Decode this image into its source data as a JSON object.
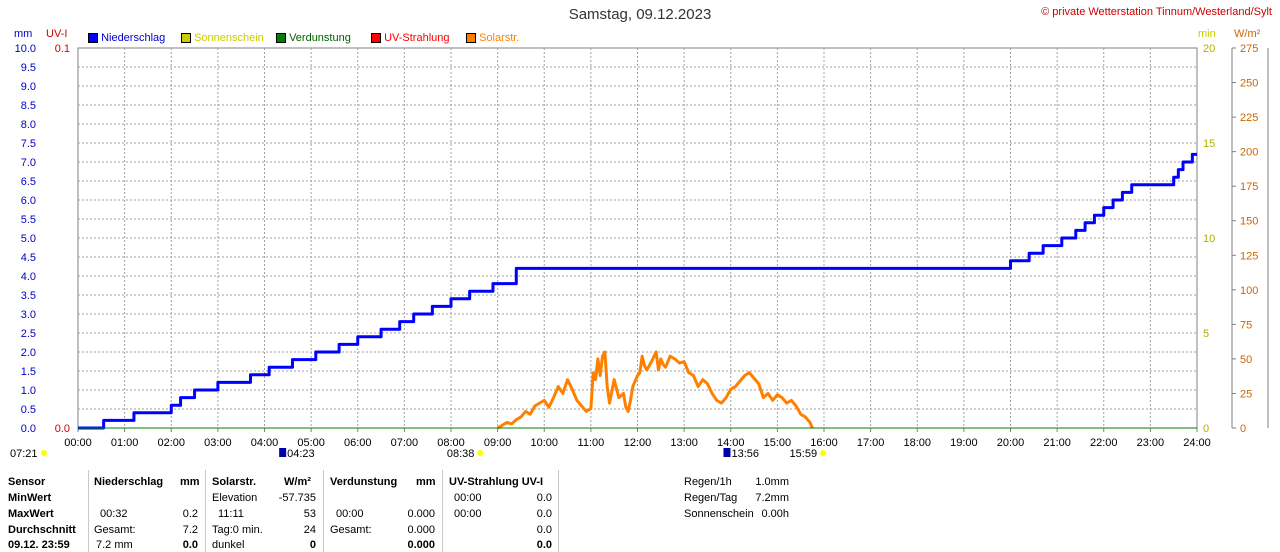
{
  "header": {
    "title": "Samstag, 09.12.2023",
    "credit": "© private Wetterstation Tinnum/Westerland/Sylt"
  },
  "units": {
    "mm": "mm",
    "uvi": "UV-I",
    "min": "min",
    "wm2": "W/m²"
  },
  "legend": [
    {
      "label": "Niederschlag",
      "color": "#0000ff",
      "text_color": "#0000cc"
    },
    {
      "label": "Sonnenschein",
      "color": "#cccc00",
      "text_color": "#cccc00"
    },
    {
      "label": "Verdunstung",
      "color": "#008000",
      "text_color": "#006000"
    },
    {
      "label": "UV-Strahlung",
      "color": "#ff0000",
      "text_color": "#ff0000"
    },
    {
      "label": "Solarstr.",
      "color": "#ff8000",
      "text_color": "#ff8000"
    }
  ],
  "chart_data": {
    "type": "line",
    "title": "Samstag, 09.12.2023",
    "x_ticks": [
      "00:00",
      "01:00",
      "02:00",
      "03:00",
      "04:00",
      "05:00",
      "06:00",
      "07:00",
      "08:00",
      "09:00",
      "10:00",
      "11:00",
      "12:00",
      "13:00",
      "14:00",
      "15:00",
      "16:00",
      "17:00",
      "18:00",
      "19:00",
      "20:00",
      "21:00",
      "22:00",
      "23:00",
      "24:00"
    ],
    "y_left_mm": {
      "ticks": [
        "0.0",
        "0.5",
        "1.0",
        "1.5",
        "2.0",
        "2.5",
        "3.0",
        "3.5",
        "4.0",
        "4.5",
        "5.0",
        "5.5",
        "6.0",
        "6.5",
        "7.0",
        "7.5",
        "8.0",
        "8.5",
        "9.0",
        "9.5",
        "10.0"
      ],
      "range": [
        0,
        10
      ]
    },
    "y_left_uvi": {
      "ticks": [
        "0.1",
        "0.0"
      ],
      "range": [
        0,
        0.1
      ]
    },
    "y_right_min": {
      "ticks": [
        "20",
        "15",
        "10",
        "5",
        "0"
      ],
      "range": [
        0,
        20
      ]
    },
    "y_right_wm2": {
      "ticks": [
        "275",
        "250",
        "225",
        "200",
        "175",
        "150",
        "125",
        "100",
        "75",
        "50",
        "25",
        "0"
      ],
      "range": [
        0,
        275
      ]
    },
    "grid": true,
    "series": [
      {
        "name": "Niederschlag",
        "axis": "mm",
        "color": "#0000ff",
        "step": true,
        "x": [
          0.0,
          0.55,
          1.2,
          2.0,
          2.2,
          2.5,
          3.0,
          3.7,
          4.1,
          4.6,
          5.1,
          5.6,
          6.0,
          6.5,
          6.9,
          7.2,
          7.6,
          8.0,
          8.4,
          8.9,
          9.4,
          20.0,
          20.4,
          20.7,
          21.1,
          21.4,
          21.6,
          21.8,
          22.0,
          22.2,
          22.4,
          22.6,
          22.9,
          23.5,
          23.6,
          23.7,
          23.8,
          23.9,
          24.0
        ],
        "y": [
          0.0,
          0.2,
          0.4,
          0.6,
          0.8,
          1.0,
          1.2,
          1.4,
          1.6,
          1.8,
          2.0,
          2.2,
          2.4,
          2.6,
          2.8,
          3.0,
          3.2,
          3.4,
          3.6,
          3.8,
          4.2,
          4.4,
          4.6,
          4.8,
          5.0,
          5.2,
          5.4,
          5.6,
          5.8,
          6.0,
          6.2,
          6.4,
          6.4,
          6.6,
          6.8,
          7.0,
          7.0,
          7.2,
          7.2
        ]
      },
      {
        "name": "Solarstr.",
        "axis": "wm2",
        "color": "#ff8000",
        "x": [
          9.0,
          9.1,
          9.2,
          9.3,
          9.4,
          9.5,
          9.6,
          9.7,
          9.8,
          9.9,
          10.0,
          10.1,
          10.2,
          10.3,
          10.4,
          10.5,
          10.6,
          10.7,
          10.8,
          10.9,
          11.0,
          11.05,
          11.1,
          11.15,
          11.2,
          11.25,
          11.3,
          11.35,
          11.4,
          11.5,
          11.6,
          11.7,
          11.75,
          11.8,
          11.85,
          11.9,
          12.0,
          12.05,
          12.1,
          12.15,
          12.2,
          12.3,
          12.4,
          12.45,
          12.5,
          12.55,
          12.6,
          12.7,
          12.8,
          12.9,
          13.0,
          13.1,
          13.2,
          13.3,
          13.4,
          13.5,
          13.6,
          13.7,
          13.8,
          13.9,
          14.0,
          14.1,
          14.2,
          14.3,
          14.4,
          14.5,
          14.6,
          14.7,
          14.8,
          14.9,
          15.0,
          15.1,
          15.2,
          15.3,
          15.4,
          15.5,
          15.6,
          15.7,
          15.75
        ],
        "y": [
          0,
          2,
          4,
          3,
          6,
          8,
          12,
          10,
          16,
          18,
          20,
          15,
          22,
          30,
          25,
          35,
          28,
          20,
          16,
          12,
          14,
          40,
          35,
          50,
          38,
          52,
          55,
          30,
          18,
          35,
          22,
          25,
          15,
          12,
          20,
          30,
          38,
          40,
          52,
          45,
          42,
          48,
          55,
          42,
          50,
          46,
          44,
          52,
          50,
          47,
          48,
          40,
          38,
          30,
          35,
          32,
          25,
          20,
          18,
          22,
          28,
          30,
          34,
          38,
          40,
          36,
          32,
          22,
          25,
          20,
          24,
          22,
          18,
          20,
          16,
          10,
          8,
          4,
          0
        ]
      },
      {
        "name": "Verdunstung",
        "axis": "mm",
        "color": "#008000",
        "x": [
          0,
          24
        ],
        "y": [
          0.0,
          0.0
        ]
      }
    ],
    "markers": [
      {
        "label": "07:21",
        "color": "#ffff00"
      },
      {
        "label": "04:23",
        "x": 4.4,
        "color": "#0000aa"
      },
      {
        "label": "08:38",
        "x": 8.63,
        "color": "#ffff00"
      },
      {
        "label": "13:56",
        "x": 13.93,
        "color": "#0000aa"
      },
      {
        "label": "15:59",
        "x": 15.98,
        "color": "#ffff00"
      }
    ]
  },
  "stats": {
    "col_sensor": {
      "title": "Sensor",
      "rows": [
        "MinWert",
        "MaxWert",
        "Durchschnitt",
        "09.12. 23:59"
      ]
    },
    "niederschlag": {
      "title": "Niederschlag",
      "unit": "mm",
      "rows": [
        {
          "a": "",
          "b": ""
        },
        {
          "a": "00:32",
          "b": "0.2"
        },
        {
          "a": "Gesamt:",
          "b": "7.2"
        },
        {
          "a": "7.2 mm",
          "b": "0.0"
        }
      ]
    },
    "solar": {
      "title": "Solarstr.",
      "unit": "W/m²",
      "rows": [
        {
          "a": "Elevation",
          "b": "-57.735"
        },
        {
          "a": "11:11",
          "b": "53"
        },
        {
          "a": "Tag:0 min.",
          "b": "24"
        },
        {
          "a": "dunkel",
          "b": "0"
        }
      ]
    },
    "verdunstung": {
      "title": "Verdunstung",
      "unit": "mm",
      "rows": [
        {
          "a": "",
          "b": ""
        },
        {
          "a": "00:00",
          "b": "0.000"
        },
        {
          "a": "Gesamt:",
          "b": "0.000"
        },
        {
          "a": "",
          "b": "0.000"
        }
      ]
    },
    "uv": {
      "title": "UV-Strahlung UV-I",
      "rows": [
        {
          "a": "00:00",
          "b": "0.0"
        },
        {
          "a": "00:00",
          "b": "0.0"
        },
        {
          "a": "",
          "b": "0.0"
        },
        {
          "a": "",
          "b": "0.0"
        }
      ]
    },
    "summary": [
      {
        "label": "Regen/1h",
        "value": "1.0mm"
      },
      {
        "label": "Regen/Tag",
        "value": "7.2mm"
      },
      {
        "label": "Sonnenschein",
        "value": "0.00h"
      }
    ]
  }
}
